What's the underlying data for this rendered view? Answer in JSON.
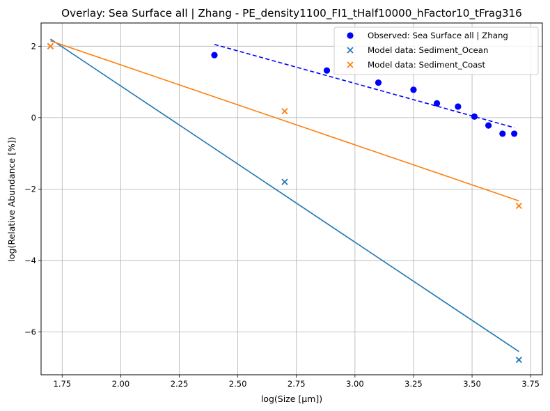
{
  "chart_data": {
    "type": "scatter",
    "title": "Overlay: Sea Surface all | Zhang - PE_density1100_FI1_tHalf10000_hFactor10_tFrag316",
    "xlabel": "log(Size [µm])",
    "ylabel": "log(Relative Abundance [%])",
    "xlim": [
      1.66,
      3.8
    ],
    "ylim": [
      -7.2,
      2.65
    ],
    "xticks": [
      1.75,
      2.0,
      2.25,
      2.5,
      2.75,
      3.0,
      3.25,
      3.5,
      3.75
    ],
    "xtick_labels": [
      "1.75",
      "2.00",
      "2.25",
      "2.50",
      "2.75",
      "3.00",
      "3.25",
      "3.50",
      "3.75"
    ],
    "yticks": [
      -6,
      -4,
      -2,
      0,
      2
    ],
    "ytick_labels": [
      "−6",
      "−4",
      "−2",
      "0",
      "2"
    ],
    "grid": true,
    "legend_position": "top-right",
    "series": [
      {
        "name": "Observed: Sea Surface all | Zhang",
        "marker": "circle",
        "color": "#0000ff",
        "points": [
          {
            "x": 2.4,
            "y": 1.75
          },
          {
            "x": 2.88,
            "y": 1.32
          },
          {
            "x": 3.1,
            "y": 0.98
          },
          {
            "x": 3.25,
            "y": 0.78
          },
          {
            "x": 3.35,
            "y": 0.4
          },
          {
            "x": 3.44,
            "y": 0.31
          },
          {
            "x": 3.51,
            "y": 0.03
          },
          {
            "x": 3.57,
            "y": -0.22
          },
          {
            "x": 3.63,
            "y": -0.45
          },
          {
            "x": 3.68,
            "y": -0.45
          }
        ],
        "fit": {
          "x1": 2.4,
          "y1": 2.05,
          "x2": 3.68,
          "y2": -0.28,
          "color": "#0000ff",
          "style": "dashed"
        }
      },
      {
        "name": "Model data: Sediment_Ocean",
        "marker": "x",
        "color": "#1f77b4",
        "points": [
          {
            "x": 1.7,
            "y": 2.0
          },
          {
            "x": 2.7,
            "y": -1.8
          },
          {
            "x": 3.7,
            "y": -6.78
          }
        ],
        "fit": {
          "x1": 1.7,
          "y1": 2.2,
          "x2": 3.7,
          "y2": -6.55,
          "color": "#1f77b4",
          "style": "solid"
        }
      },
      {
        "name": "Model data: Sediment_Coast",
        "marker": "x",
        "color": "#ff7f0e",
        "points": [
          {
            "x": 1.7,
            "y": 2.0
          },
          {
            "x": 2.7,
            "y": 0.18
          },
          {
            "x": 3.7,
            "y": -2.47
          }
        ],
        "fit": {
          "x1": 1.7,
          "y1": 2.15,
          "x2": 3.7,
          "y2": -2.33,
          "color": "#ff7f0e",
          "style": "solid"
        }
      }
    ]
  }
}
